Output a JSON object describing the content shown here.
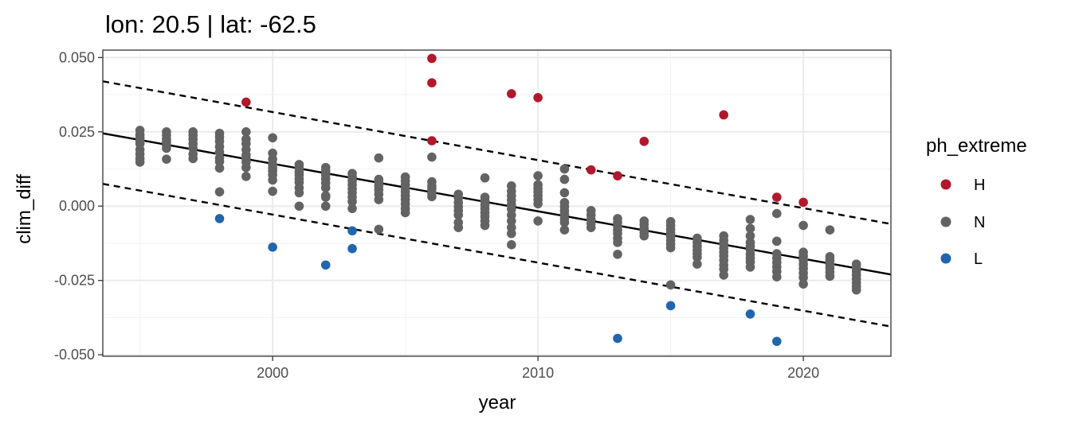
{
  "chart_data": {
    "type": "scatter",
    "title": "lon: 20.5 | lat: -62.5",
    "xlabel": "year",
    "ylabel": "clim_diff",
    "xlim": [
      1993.6,
      2023.3
    ],
    "ylim": [
      -0.0505,
      0.0525
    ],
    "xticks": [
      2000,
      2010,
      2020
    ],
    "xtick_labels": [
      "2000",
      "2010",
      "2020"
    ],
    "yticks": [
      -0.05,
      -0.025,
      0.0,
      0.025,
      0.05
    ],
    "ytick_labels": [
      "-0.050",
      "-0.025",
      "0.000",
      "0.025",
      "0.050"
    ],
    "grid": true,
    "legend": {
      "title": "ph_extreme",
      "position": "right",
      "entries": [
        {
          "label": "H",
          "color": "#b2182b"
        },
        {
          "label": "N",
          "color": "#636363"
        },
        {
          "label": "L",
          "color": "#2166ac"
        }
      ]
    },
    "lines": [
      {
        "name": "trend",
        "style": "solid",
        "color": "#000000",
        "x": [
          1993.6,
          2023.3
        ],
        "y": [
          0.0245,
          -0.023
        ]
      },
      {
        "name": "upper",
        "style": "dashed",
        "color": "#000000",
        "x": [
          1993.6,
          2023.3
        ],
        "y": [
          0.042,
          -0.006
        ]
      },
      {
        "name": "lower",
        "style": "dashed",
        "color": "#000000",
        "x": [
          1993.6,
          2023.3
        ],
        "y": [
          0.0075,
          -0.0405
        ]
      }
    ],
    "series": [
      {
        "name": "H",
        "color": "#b2182b",
        "points": [
          [
            1999,
            0.035
          ],
          [
            2006,
            0.0497
          ],
          [
            2006,
            0.0415
          ],
          [
            2006,
            0.022
          ],
          [
            2009,
            0.0378
          ],
          [
            2010,
            0.0365
          ],
          [
            2012,
            0.0122
          ],
          [
            2013,
            0.0102
          ],
          [
            2014,
            0.0218
          ],
          [
            2017,
            0.0307
          ],
          [
            2019,
            0.003
          ],
          [
            2020,
            0.0013
          ]
        ]
      },
      {
        "name": "N",
        "color": "#636363",
        "points": [
          [
            1995,
            0.0255
          ],
          [
            1995,
            0.024
          ],
          [
            1995,
            0.023
          ],
          [
            1995,
            0.022
          ],
          [
            1995,
            0.021
          ],
          [
            1995,
            0.019
          ],
          [
            1995,
            0.0175
          ],
          [
            1995,
            0.016
          ],
          [
            1995,
            0.0148
          ],
          [
            1996,
            0.025
          ],
          [
            1996,
            0.0238
          ],
          [
            1996,
            0.0225
          ],
          [
            1996,
            0.0215
          ],
          [
            1996,
            0.0205
          ],
          [
            1996,
            0.0195
          ],
          [
            1996,
            0.0158
          ],
          [
            1997,
            0.025
          ],
          [
            1997,
            0.0238
          ],
          [
            1997,
            0.0225
          ],
          [
            1997,
            0.021
          ],
          [
            1997,
            0.0195
          ],
          [
            1997,
            0.0175
          ],
          [
            1997,
            0.016
          ],
          [
            1998,
            0.0245
          ],
          [
            1998,
            0.0232
          ],
          [
            1998,
            0.0218
          ],
          [
            1998,
            0.02
          ],
          [
            1998,
            0.0182
          ],
          [
            1998,
            0.0162
          ],
          [
            1998,
            0.015
          ],
          [
            1998,
            0.0128
          ],
          [
            1998,
            0.0048
          ],
          [
            1999,
            0.025
          ],
          [
            1999,
            0.0225
          ],
          [
            1999,
            0.021
          ],
          [
            1999,
            0.019
          ],
          [
            1999,
            0.0172
          ],
          [
            1999,
            0.016
          ],
          [
            1999,
            0.0148
          ],
          [
            1999,
            0.013
          ],
          [
            1999,
            0.01
          ],
          [
            2000,
            0.023
          ],
          [
            2000,
            0.0178
          ],
          [
            2000,
            0.0158
          ],
          [
            2000,
            0.014
          ],
          [
            2000,
            0.0128
          ],
          [
            2000,
            0.0118
          ],
          [
            2000,
            0.0105
          ],
          [
            2000,
            0.0088
          ],
          [
            2000,
            0.005
          ],
          [
            2001,
            0.014
          ],
          [
            2001,
            0.0128
          ],
          [
            2001,
            0.0115
          ],
          [
            2001,
            0.0105
          ],
          [
            2001,
            0.0092
          ],
          [
            2001,
            0.008
          ],
          [
            2001,
            0.0062
          ],
          [
            2001,
            0.0045
          ],
          [
            2001,
            0.0
          ],
          [
            2002,
            0.013
          ],
          [
            2002,
            0.0118
          ],
          [
            2002,
            0.0105
          ],
          [
            2002,
            0.0092
          ],
          [
            2002,
            0.0078
          ],
          [
            2002,
            0.0062
          ],
          [
            2002,
            0.0035
          ],
          [
            2002,
            0.003
          ],
          [
            2002,
            0.0
          ],
          [
            2003,
            0.011
          ],
          [
            2003,
            0.0098
          ],
          [
            2003,
            0.0085
          ],
          [
            2003,
            0.0072
          ],
          [
            2003,
            0.0058
          ],
          [
            2003,
            0.0045
          ],
          [
            2003,
            0.003
          ],
          [
            2003,
            0.0015
          ],
          [
            2003,
            -0.0008
          ],
          [
            2004,
            0.0162
          ],
          [
            2004,
            0.009
          ],
          [
            2004,
            0.008
          ],
          [
            2004,
            0.0068
          ],
          [
            2004,
            0.0055
          ],
          [
            2004,
            0.004
          ],
          [
            2004,
            0.0022
          ],
          [
            2004,
            -0.0078
          ],
          [
            2005,
            0.0098
          ],
          [
            2005,
            0.0085
          ],
          [
            2005,
            0.0072
          ],
          [
            2005,
            0.006
          ],
          [
            2005,
            0.0048
          ],
          [
            2005,
            0.0035
          ],
          [
            2005,
            0.0022
          ],
          [
            2005,
            0.0008
          ],
          [
            2005,
            -0.0008
          ],
          [
            2005,
            -0.0022
          ],
          [
            2006,
            0.0165
          ],
          [
            2006,
            0.0082
          ],
          [
            2006,
            0.0068
          ],
          [
            2006,
            0.0058
          ],
          [
            2006,
            0.0045
          ],
          [
            2006,
            0.0032
          ],
          [
            2007,
            0.004
          ],
          [
            2007,
            0.0028
          ],
          [
            2007,
            0.0012
          ],
          [
            2007,
            -0.0002
          ],
          [
            2007,
            -0.0015
          ],
          [
            2007,
            -0.003
          ],
          [
            2007,
            -0.0055
          ],
          [
            2007,
            -0.0072
          ],
          [
            2008,
            0.0095
          ],
          [
            2008,
            0.003
          ],
          [
            2008,
            0.0018
          ],
          [
            2008,
            0.0005
          ],
          [
            2008,
            -0.0008
          ],
          [
            2008,
            -0.0022
          ],
          [
            2008,
            -0.0035
          ],
          [
            2008,
            -0.005
          ],
          [
            2008,
            -0.0065
          ],
          [
            2009,
            0.0068
          ],
          [
            2009,
            0.005
          ],
          [
            2009,
            0.0035
          ],
          [
            2009,
            0.002
          ],
          [
            2009,
            0.0005
          ],
          [
            2009,
            -0.001
          ],
          [
            2009,
            -0.003
          ],
          [
            2009,
            -0.005
          ],
          [
            2009,
            -0.0072
          ],
          [
            2009,
            -0.0092
          ],
          [
            2009,
            -0.013
          ],
          [
            2010,
            0.0102
          ],
          [
            2010,
            0.0072
          ],
          [
            2010,
            0.006
          ],
          [
            2010,
            0.0048
          ],
          [
            2010,
            0.0035
          ],
          [
            2010,
            0.0022
          ],
          [
            2010,
            0.0008
          ],
          [
            2010,
            -0.005
          ],
          [
            2011,
            0.0125
          ],
          [
            2011,
            0.009
          ],
          [
            2011,
            0.0045
          ],
          [
            2011,
            0.0012
          ],
          [
            2011,
            -0.0002
          ],
          [
            2011,
            -0.0015
          ],
          [
            2011,
            -0.0028
          ],
          [
            2011,
            -0.0042
          ],
          [
            2011,
            -0.0055
          ],
          [
            2011,
            -0.008
          ],
          [
            2012,
            -0.0015
          ],
          [
            2012,
            -0.003
          ],
          [
            2012,
            -0.0045
          ],
          [
            2012,
            -0.0058
          ],
          [
            2012,
            -0.0072
          ],
          [
            2013,
            -0.0042
          ],
          [
            2013,
            -0.0055
          ],
          [
            2013,
            -0.0068
          ],
          [
            2013,
            -0.008
          ],
          [
            2013,
            -0.0092
          ],
          [
            2013,
            -0.0108
          ],
          [
            2013,
            -0.0122
          ],
          [
            2013,
            -0.0162
          ],
          [
            2014,
            -0.005
          ],
          [
            2014,
            -0.0062
          ],
          [
            2014,
            -0.0075
          ],
          [
            2014,
            -0.0088
          ],
          [
            2014,
            -0.01
          ],
          [
            2015,
            -0.0052
          ],
          [
            2015,
            -0.0065
          ],
          [
            2015,
            -0.0078
          ],
          [
            2015,
            -0.009
          ],
          [
            2015,
            -0.0102
          ],
          [
            2015,
            -0.0115
          ],
          [
            2015,
            -0.0128
          ],
          [
            2015,
            -0.014
          ],
          [
            2015,
            -0.0265
          ],
          [
            2016,
            -0.0108
          ],
          [
            2016,
            -0.0122
          ],
          [
            2016,
            -0.0135
          ],
          [
            2016,
            -0.0148
          ],
          [
            2016,
            -0.016
          ],
          [
            2016,
            -0.0172
          ],
          [
            2016,
            -0.0195
          ],
          [
            2017,
            -0.01
          ],
          [
            2017,
            -0.0115
          ],
          [
            2017,
            -0.0128
          ],
          [
            2017,
            -0.0142
          ],
          [
            2017,
            -0.0155
          ],
          [
            2017,
            -0.0168
          ],
          [
            2017,
            -0.0182
          ],
          [
            2017,
            -0.0198
          ],
          [
            2017,
            -0.0212
          ],
          [
            2017,
            -0.0232
          ],
          [
            2018,
            -0.0045
          ],
          [
            2018,
            -0.0075
          ],
          [
            2018,
            -0.01
          ],
          [
            2018,
            -0.0122
          ],
          [
            2018,
            -0.0135
          ],
          [
            2018,
            -0.0148
          ],
          [
            2018,
            -0.0162
          ],
          [
            2018,
            -0.0175
          ],
          [
            2018,
            -0.0188
          ],
          [
            2018,
            -0.0205
          ],
          [
            2019,
            -0.0025
          ],
          [
            2019,
            -0.0118
          ],
          [
            2019,
            -0.016
          ],
          [
            2019,
            -0.0175
          ],
          [
            2019,
            -0.019
          ],
          [
            2019,
            -0.0205
          ],
          [
            2019,
            -0.022
          ],
          [
            2019,
            -0.0238
          ],
          [
            2020,
            -0.0065
          ],
          [
            2020,
            -0.0155
          ],
          [
            2020,
            -0.0168
          ],
          [
            2020,
            -0.0182
          ],
          [
            2020,
            -0.0196
          ],
          [
            2020,
            -0.021
          ],
          [
            2020,
            -0.0225
          ],
          [
            2020,
            -0.024
          ],
          [
            2020,
            -0.0262
          ],
          [
            2021,
            -0.008
          ],
          [
            2021,
            -0.017
          ],
          [
            2021,
            -0.0182
          ],
          [
            2021,
            -0.0195
          ],
          [
            2021,
            -0.0208
          ],
          [
            2021,
            -0.0222
          ],
          [
            2021,
            -0.0236
          ],
          [
            2022,
            -0.0195
          ],
          [
            2022,
            -0.0208
          ],
          [
            2022,
            -0.022
          ],
          [
            2022,
            -0.0232
          ],
          [
            2022,
            -0.0245
          ],
          [
            2022,
            -0.0258
          ],
          [
            2022,
            -0.027
          ],
          [
            2022,
            -0.0282
          ]
        ]
      },
      {
        "name": "L",
        "color": "#2166ac",
        "points": [
          [
            1998,
            -0.0042
          ],
          [
            2000,
            -0.0138
          ],
          [
            2002,
            -0.0198
          ],
          [
            2003,
            -0.0083
          ],
          [
            2003,
            -0.0143
          ],
          [
            2013,
            -0.0445
          ],
          [
            2015,
            -0.0335
          ],
          [
            2018,
            -0.0363
          ],
          [
            2019,
            -0.0455
          ]
        ]
      }
    ]
  }
}
